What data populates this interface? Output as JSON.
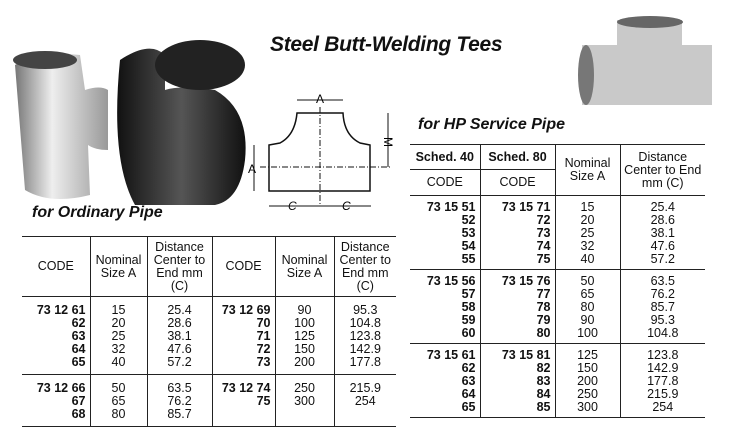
{
  "title": "Steel Butt-Welding Tees",
  "ordinary": {
    "heading": "for Ordinary Pipe",
    "headers": [
      "CODE",
      "Nominal Size A",
      "Distance Center to End mm (C)",
      "CODE",
      "Nominal Size A",
      "Distance Center to End mm (C)"
    ],
    "groups": [
      [
        [
          "73 12 61",
          "15",
          "25.4",
          "73 12 69",
          "90",
          "95.3"
        ],
        [
          "62",
          "20",
          "28.6",
          "70",
          "100",
          "104.8"
        ],
        [
          "63",
          "25",
          "38.1",
          "71",
          "125",
          "123.8"
        ],
        [
          "64",
          "32",
          "47.6",
          "72",
          "150",
          "142.9"
        ],
        [
          "65",
          "40",
          "57.2",
          "73",
          "200",
          "177.8"
        ]
      ],
      [
        [
          "73 12 66",
          "50",
          "63.5",
          "73 12 74",
          "250",
          "215.9"
        ],
        [
          "67",
          "65",
          "76.2",
          "75",
          "300",
          "254"
        ],
        [
          "68",
          "80",
          "85.7",
          "",
          "",
          ""
        ]
      ]
    ]
  },
  "hp": {
    "heading": "for HP Service Pipe",
    "headers": {
      "sched40": "Sched. 40",
      "sched80": "Sched. 80",
      "code": "CODE",
      "nominal": "Nominal Size A",
      "distance": "Distance Center to End mm (C)"
    },
    "groups": [
      [
        [
          "73 15 51",
          "73 15 71",
          "15",
          "25.4"
        ],
        [
          "52",
          "72",
          "20",
          "28.6"
        ],
        [
          "53",
          "73",
          "25",
          "38.1"
        ],
        [
          "54",
          "74",
          "32",
          "47.6"
        ],
        [
          "55",
          "75",
          "40",
          "57.2"
        ]
      ],
      [
        [
          "73 15 56",
          "73 15 76",
          "50",
          "63.5"
        ],
        [
          "57",
          "77",
          "65",
          "76.2"
        ],
        [
          "58",
          "78",
          "80",
          "85.7"
        ],
        [
          "59",
          "79",
          "90",
          "95.3"
        ],
        [
          "60",
          "80",
          "100",
          "104.8"
        ]
      ],
      [
        [
          "73 15 61",
          "73 15 81",
          "125",
          "123.8"
        ],
        [
          "62",
          "82",
          "150",
          "142.9"
        ],
        [
          "63",
          "83",
          "200",
          "177.8"
        ],
        [
          "64",
          "84",
          "250",
          "215.9"
        ],
        [
          "65",
          "85",
          "300",
          "254"
        ]
      ]
    ]
  },
  "diagram": {
    "labels": {
      "a_top": "A",
      "a_left": "A",
      "m": "M",
      "c_left": "C",
      "c_right": "C"
    }
  }
}
